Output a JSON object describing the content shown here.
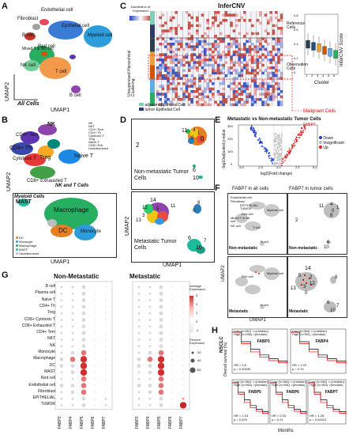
{
  "panels": {
    "A": {
      "letter": "A",
      "xlabel": "UMAP1",
      "ylabel": "UMAP2",
      "corner_label": "All Cells",
      "clusters": [
        {
          "name": "Endothelial cell",
          "color": "#e84a5f"
        },
        {
          "name": "Fibroblast",
          "color": "#a0a0a0"
        },
        {
          "name": "B cell",
          "color": "#c0392b"
        },
        {
          "name": "Epithelial cell",
          "color": "#3a7bd5"
        },
        {
          "name": "Myeloid cell",
          "color": "#2d9cdb"
        },
        {
          "name": "Mixed T & NK cell",
          "color": "#27ae60"
        },
        {
          "name": "NK cell",
          "color": "#6fcf97"
        },
        {
          "name": "Red cell",
          "color": "#f2994a"
        },
        {
          "name": "T cell",
          "color": "#f2994a"
        },
        {
          "name": "B cell",
          "color": "#8e44ad"
        }
      ]
    },
    "B": {
      "letter": "B",
      "xlabel": "UMAP1",
      "ylabel": "UMAP2",
      "top_label": "NK and T Cells",
      "bottom_label": "Myeloid Cells",
      "top_clusters": [
        "NK",
        "CD4+ Tem",
        "CD4+ Th",
        "Cytotoxic T",
        "Treg",
        "Naive T",
        "CD8+ Exhausted T"
      ],
      "top_legend": [
        "NK",
        "NKT",
        "CD4+ Tem",
        "CD4+ Th",
        "Cytotoxic T",
        "Treg",
        "Naive T",
        "CD8+ Exh",
        "Undetermined"
      ],
      "bottom_clusters": [
        "MAST",
        "Macrophage",
        "DC",
        "Monocyte"
      ],
      "bottom_legend": [
        "DC",
        "Monocyte",
        "Macrophage",
        "MAST",
        "Undetermined"
      ],
      "bottom_legend_colors": [
        "#e67e22",
        "#2d9cdb",
        "#27ae60",
        "#1abc9c",
        "#bdbdbd"
      ]
    },
    "C": {
      "letter": "C",
      "title": "InferCNV",
      "colorbar_title": "Distribution of Expression",
      "side_label_top": "Reference Cells",
      "side_label_bottom": "Observation Cells",
      "malignant_label": "Malignant Cells",
      "left_axis": "Unsupervised Hierarchical Clustering",
      "legend_adjacent": "adjacent Epithelial Cell",
      "legend_tumor": "tumor Epithelial Cell",
      "box_ylabel": "InferCNV Score",
      "box_xlabel": "Cluster",
      "box_yticks": [
        "0.8",
        "0.6",
        "0.4",
        "0.2",
        "0"
      ],
      "box_categories": [
        "1",
        "2",
        "3",
        "4",
        "5",
        "6"
      ],
      "box_colors": [
        "#2d3e50",
        "#1f4e79",
        "#e6a23c",
        "#d35400",
        "#5dade2",
        "#27ae60"
      ]
    },
    "D": {
      "letter": "D",
      "xlabel": "UMAP1",
      "ylabel": "UMAP2",
      "top_label": "Non-metastatic Tumor Cells",
      "bottom_label": "Metastatic Tumor Cells",
      "top_numbers": [
        "2",
        "11",
        "4",
        "1",
        "8",
        "0",
        "6",
        "10"
      ],
      "bottom_numbers": [
        "14",
        "12",
        "3",
        "11",
        "5",
        "8",
        "13",
        "0",
        "6",
        "10",
        "7"
      ]
    },
    "E": {
      "letter": "E",
      "title": "Metastatic vs Non-metastatic Tumor Cells",
      "xlabel": "log2(Fold change)",
      "ylabel": "-log10adjusted p-value",
      "xticks": [
        "-5.0",
        "-2.5",
        "0.0",
        "2.5",
        "5.0"
      ],
      "yticks": [
        "300",
        "200",
        "100",
        "0"
      ],
      "highlight": "FABP7",
      "legend": [
        {
          "label": "Down",
          "color": "#1f3fbf"
        },
        {
          "label": "Insignificant",
          "color": "#bdbdbd"
        },
        {
          "label": "Up",
          "color": "#e02020"
        }
      ]
    },
    "F": {
      "letter": "F",
      "title_left": "FABP7 in all cells",
      "title_right": "FABP7 in tumor cells",
      "xlabel": "UMAP1",
      "ylabel": "UMAP2",
      "tag_non": "Non-metastatic",
      "tag_met": "Metastatic",
      "cell_labels": [
        "Endothelial cell",
        "Fibroblast",
        "EPITHELIAL TUMOR",
        "Red cell",
        "Mixed T & NK cell",
        "NK cell",
        "T cell",
        "Myeloid cell",
        "B cell"
      ],
      "tumor_top_numbers": [
        "2",
        "11",
        "4",
        "1",
        "0",
        "8",
        "6",
        "10"
      ],
      "tumor_bottom_numbers": [
        "14",
        "5",
        "2",
        "12",
        "3",
        "13",
        "0",
        "8",
        "6",
        "10",
        "7"
      ]
    },
    "G": {
      "letter": "G",
      "title_left": "Non-Metastatic",
      "title_right": "Metastatic",
      "rows": [
        "B cell",
        "Plasma cell",
        "Naive T",
        "CD4+ Th",
        "Treg",
        "CD8+ Cytotoxic T",
        "CD8+ Exhausted T",
        "CD4+ Tem",
        "NKT",
        "NK",
        "Monocyte",
        "Macrophage",
        "DC",
        "MAST",
        "Red cell",
        "Endothelial cell",
        "Fibroblast",
        "EPITHELIAL",
        "TUMOR"
      ],
      "cols": [
        "FABP3",
        "FABP4",
        "FABP5",
        "FABP6",
        "FABP7"
      ],
      "legend_avg_title": "Average Expression",
      "legend_avg_ticks": [
        "3",
        "2",
        "1",
        "0",
        "-1"
      ],
      "legend_pct_title": "Percent Expressed",
      "legend_pct_ticks": [
        "20",
        "40",
        "60"
      ]
    },
    "H": {
      "letter": "H",
      "ylabel": "Overall survival (%)",
      "side_label": "NSCLC",
      "xlabel": "Months",
      "plots": [
        {
          "gene": "FABP3",
          "low": "Low (n=967) <=(median)",
          "high": "High (n=958) >(median)",
          "hr": "HR = 0.8",
          "p": "p = 0.00039"
        },
        {
          "gene": "FABP4",
          "low": "Low (n=964) <=(median)",
          "high": "High (n=961) >(median)",
          "hr": "HR = 1.02",
          "p": "p = 0.76"
        },
        {
          "gene": "FABP5",
          "low": "Low (n=962) <=(median)",
          "high": "High (n=963) >(median)",
          "hr": "HR = 1.15",
          "p": "p = 0.029"
        },
        {
          "gene": "FABP6",
          "low": "Low (n=964) <=(median)",
          "high": "High (n=961) >(median)",
          "hr": "HR = 0.92",
          "p": "p = 0.21"
        },
        {
          "gene": "FABP7",
          "low": "Low (n=962) <=(median)",
          "high": "High (n=963) >(median)",
          "hr": "HR = 1.28",
          "p": "p = 0.00012"
        }
      ],
      "xticks": [
        "0",
        "50",
        "100",
        "150",
        "200"
      ]
    }
  }
}
